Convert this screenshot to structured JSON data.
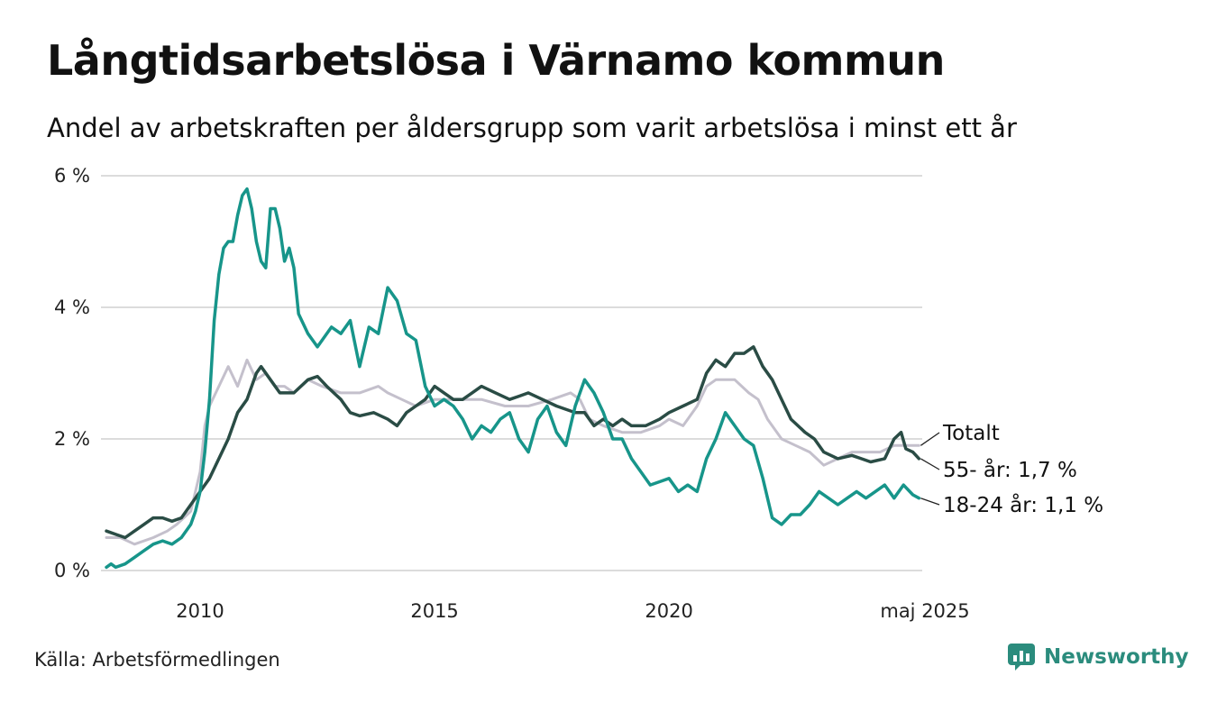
{
  "title": "Långtidsarbetslösa i Värnamo kommun",
  "subtitle": "Andel av arbetskraften per åldersgrupp som varit arbetslösa i minst ett år",
  "source": "Källa: Arbetsförmedlingen",
  "brand": "Newsworthy",
  "colors": {
    "totalt": "#c4c0cc",
    "age55": "#2a4c45",
    "age1824": "#17958a",
    "grid": "#dcdcdc",
    "brand": "#2b8c7d"
  },
  "chart_data": {
    "type": "line",
    "title": "Långtidsarbetslösa i Värnamo kommun",
    "xlabel": "",
    "ylabel": "",
    "xlim": [
      2008.0,
      2025.4
    ],
    "ylim": [
      0,
      6
    ],
    "grid": "horizontal",
    "x_ticks": [
      {
        "value": 2010,
        "label": "2010"
      },
      {
        "value": 2015,
        "label": "2015"
      },
      {
        "value": 2020,
        "label": "2020"
      },
      {
        "value": 2025.33,
        "label": "maj 2025"
      }
    ],
    "y_ticks": [
      {
        "value": 0,
        "label": "0 %"
      },
      {
        "value": 2,
        "label": "2 %"
      },
      {
        "value": 4,
        "label": "4 %"
      },
      {
        "value": 6,
        "label": "6 %"
      }
    ],
    "end_labels": [
      {
        "series": "totalt",
        "label": "Totalt"
      },
      {
        "series": "age55",
        "label": "55- år: 1,7 %"
      },
      {
        "series": "age1824",
        "label": "18-24 år: 1,1 %"
      }
    ],
    "series": [
      {
        "key": "totalt",
        "points": [
          [
            2008.0,
            0.5
          ],
          [
            2008.3,
            0.5
          ],
          [
            2008.6,
            0.4
          ],
          [
            2009.0,
            0.5
          ],
          [
            2009.3,
            0.6
          ],
          [
            2009.5,
            0.7
          ],
          [
            2009.8,
            0.9
          ],
          [
            2010.0,
            1.5
          ],
          [
            2010.1,
            2.2
          ],
          [
            2010.2,
            2.5
          ],
          [
            2010.4,
            2.8
          ],
          [
            2010.6,
            3.1
          ],
          [
            2010.8,
            2.8
          ],
          [
            2011.0,
            3.2
          ],
          [
            2011.2,
            2.9
          ],
          [
            2011.4,
            3.0
          ],
          [
            2011.6,
            2.8
          ],
          [
            2011.8,
            2.8
          ],
          [
            2012.0,
            2.7
          ],
          [
            2012.3,
            2.9
          ],
          [
            2012.6,
            2.8
          ],
          [
            2013.0,
            2.7
          ],
          [
            2013.4,
            2.7
          ],
          [
            2013.8,
            2.8
          ],
          [
            2014.0,
            2.7
          ],
          [
            2014.3,
            2.6
          ],
          [
            2014.6,
            2.5
          ],
          [
            2015.0,
            2.6
          ],
          [
            2015.5,
            2.6
          ],
          [
            2016.0,
            2.6
          ],
          [
            2016.5,
            2.5
          ],
          [
            2017.0,
            2.5
          ],
          [
            2017.5,
            2.6
          ],
          [
            2017.9,
            2.7
          ],
          [
            2018.1,
            2.6
          ],
          [
            2018.3,
            2.3
          ],
          [
            2018.6,
            2.2
          ],
          [
            2019.0,
            2.1
          ],
          [
            2019.4,
            2.1
          ],
          [
            2019.8,
            2.2
          ],
          [
            2020.0,
            2.3
          ],
          [
            2020.3,
            2.2
          ],
          [
            2020.6,
            2.5
          ],
          [
            2020.8,
            2.8
          ],
          [
            2021.0,
            2.9
          ],
          [
            2021.4,
            2.9
          ],
          [
            2021.7,
            2.7
          ],
          [
            2021.9,
            2.6
          ],
          [
            2022.1,
            2.3
          ],
          [
            2022.4,
            2.0
          ],
          [
            2022.7,
            1.9
          ],
          [
            2023.0,
            1.8
          ],
          [
            2023.3,
            1.6
          ],
          [
            2023.6,
            1.7
          ],
          [
            2023.9,
            1.8
          ],
          [
            2024.2,
            1.8
          ],
          [
            2024.5,
            1.8
          ],
          [
            2024.8,
            1.9
          ],
          [
            2025.0,
            1.9
          ],
          [
            2025.33,
            1.9
          ]
        ]
      },
      {
        "key": "age55",
        "points": [
          [
            2008.0,
            0.6
          ],
          [
            2008.2,
            0.55
          ],
          [
            2008.4,
            0.5
          ],
          [
            2008.6,
            0.6
          ],
          [
            2008.8,
            0.7
          ],
          [
            2009.0,
            0.8
          ],
          [
            2009.2,
            0.8
          ],
          [
            2009.4,
            0.75
          ],
          [
            2009.6,
            0.8
          ],
          [
            2009.8,
            1.0
          ],
          [
            2010.0,
            1.2
          ],
          [
            2010.2,
            1.4
          ],
          [
            2010.4,
            1.7
          ],
          [
            2010.6,
            2.0
          ],
          [
            2010.7,
            2.2
          ],
          [
            2010.8,
            2.4
          ],
          [
            2011.0,
            2.6
          ],
          [
            2011.1,
            2.8
          ],
          [
            2011.2,
            3.0
          ],
          [
            2011.3,
            3.1
          ],
          [
            2011.5,
            2.9
          ],
          [
            2011.7,
            2.7
          ],
          [
            2012.0,
            2.7
          ],
          [
            2012.3,
            2.9
          ],
          [
            2012.5,
            2.95
          ],
          [
            2012.7,
            2.8
          ],
          [
            2013.0,
            2.6
          ],
          [
            2013.2,
            2.4
          ],
          [
            2013.4,
            2.35
          ],
          [
            2013.7,
            2.4
          ],
          [
            2014.0,
            2.3
          ],
          [
            2014.2,
            2.2
          ],
          [
            2014.4,
            2.4
          ],
          [
            2014.6,
            2.5
          ],
          [
            2014.8,
            2.6
          ],
          [
            2015.0,
            2.8
          ],
          [
            2015.2,
            2.7
          ],
          [
            2015.4,
            2.6
          ],
          [
            2015.6,
            2.6
          ],
          [
            2015.8,
            2.7
          ],
          [
            2016.0,
            2.8
          ],
          [
            2016.3,
            2.7
          ],
          [
            2016.6,
            2.6
          ],
          [
            2016.8,
            2.65
          ],
          [
            2017.0,
            2.7
          ],
          [
            2017.3,
            2.6
          ],
          [
            2017.6,
            2.5
          ],
          [
            2018.0,
            2.4
          ],
          [
            2018.2,
            2.4
          ],
          [
            2018.4,
            2.2
          ],
          [
            2018.6,
            2.3
          ],
          [
            2018.8,
            2.2
          ],
          [
            2019.0,
            2.3
          ],
          [
            2019.2,
            2.2
          ],
          [
            2019.5,
            2.2
          ],
          [
            2019.8,
            2.3
          ],
          [
            2020.0,
            2.4
          ],
          [
            2020.3,
            2.5
          ],
          [
            2020.6,
            2.6
          ],
          [
            2020.8,
            3.0
          ],
          [
            2021.0,
            3.2
          ],
          [
            2021.2,
            3.1
          ],
          [
            2021.4,
            3.3
          ],
          [
            2021.6,
            3.3
          ],
          [
            2021.8,
            3.4
          ],
          [
            2022.0,
            3.1
          ],
          [
            2022.2,
            2.9
          ],
          [
            2022.4,
            2.6
          ],
          [
            2022.6,
            2.3
          ],
          [
            2022.9,
            2.1
          ],
          [
            2023.1,
            2.0
          ],
          [
            2023.3,
            1.8
          ],
          [
            2023.6,
            1.7
          ],
          [
            2023.9,
            1.75
          ],
          [
            2024.1,
            1.7
          ],
          [
            2024.3,
            1.65
          ],
          [
            2024.6,
            1.7
          ],
          [
            2024.8,
            2.0
          ],
          [
            2024.95,
            2.1
          ],
          [
            2025.05,
            1.85
          ],
          [
            2025.2,
            1.8
          ],
          [
            2025.33,
            1.7
          ]
        ]
      },
      {
        "key": "age1824",
        "points": [
          [
            2008.0,
            0.05
          ],
          [
            2008.1,
            0.1
          ],
          [
            2008.2,
            0.05
          ],
          [
            2008.4,
            0.1
          ],
          [
            2008.6,
            0.2
          ],
          [
            2008.8,
            0.3
          ],
          [
            2009.0,
            0.4
          ],
          [
            2009.2,
            0.45
          ],
          [
            2009.4,
            0.4
          ],
          [
            2009.6,
            0.5
          ],
          [
            2009.8,
            0.7
          ],
          [
            2009.9,
            0.9
          ],
          [
            2010.0,
            1.2
          ],
          [
            2010.1,
            1.8
          ],
          [
            2010.2,
            2.6
          ],
          [
            2010.3,
            3.8
          ],
          [
            2010.4,
            4.5
          ],
          [
            2010.5,
            4.9
          ],
          [
            2010.6,
            5.0
          ],
          [
            2010.7,
            5.0
          ],
          [
            2010.8,
            5.4
          ],
          [
            2010.9,
            5.7
          ],
          [
            2011.0,
            5.8
          ],
          [
            2011.1,
            5.5
          ],
          [
            2011.2,
            5.0
          ],
          [
            2011.3,
            4.7
          ],
          [
            2011.4,
            4.6
          ],
          [
            2011.5,
            5.5
          ],
          [
            2011.6,
            5.5
          ],
          [
            2011.7,
            5.2
          ],
          [
            2011.8,
            4.7
          ],
          [
            2011.9,
            4.9
          ],
          [
            2012.0,
            4.6
          ],
          [
            2012.1,
            3.9
          ],
          [
            2012.3,
            3.6
          ],
          [
            2012.5,
            3.4
          ],
          [
            2012.6,
            3.5
          ],
          [
            2012.8,
            3.7
          ],
          [
            2013.0,
            3.6
          ],
          [
            2013.2,
            3.8
          ],
          [
            2013.4,
            3.1
          ],
          [
            2013.6,
            3.7
          ],
          [
            2013.8,
            3.6
          ],
          [
            2014.0,
            4.3
          ],
          [
            2014.2,
            4.1
          ],
          [
            2014.4,
            3.6
          ],
          [
            2014.6,
            3.5
          ],
          [
            2014.8,
            2.8
          ],
          [
            2015.0,
            2.5
          ],
          [
            2015.2,
            2.6
          ],
          [
            2015.4,
            2.5
          ],
          [
            2015.6,
            2.3
          ],
          [
            2015.8,
            2.0
          ],
          [
            2016.0,
            2.2
          ],
          [
            2016.2,
            2.1
          ],
          [
            2016.4,
            2.3
          ],
          [
            2016.6,
            2.4
          ],
          [
            2016.8,
            2.0
          ],
          [
            2017.0,
            1.8
          ],
          [
            2017.2,
            2.3
          ],
          [
            2017.4,
            2.5
          ],
          [
            2017.6,
            2.1
          ],
          [
            2017.8,
            1.9
          ],
          [
            2018.0,
            2.5
          ],
          [
            2018.2,
            2.9
          ],
          [
            2018.4,
            2.7
          ],
          [
            2018.6,
            2.4
          ],
          [
            2018.8,
            2.0
          ],
          [
            2019.0,
            2.0
          ],
          [
            2019.2,
            1.7
          ],
          [
            2019.4,
            1.5
          ],
          [
            2019.6,
            1.3
          ],
          [
            2019.8,
            1.35
          ],
          [
            2020.0,
            1.4
          ],
          [
            2020.2,
            1.2
          ],
          [
            2020.4,
            1.3
          ],
          [
            2020.6,
            1.2
          ],
          [
            2020.8,
            1.7
          ],
          [
            2021.0,
            2.0
          ],
          [
            2021.2,
            2.4
          ],
          [
            2021.4,
            2.2
          ],
          [
            2021.6,
            2.0
          ],
          [
            2021.8,
            1.9
          ],
          [
            2022.0,
            1.4
          ],
          [
            2022.2,
            0.8
          ],
          [
            2022.4,
            0.7
          ],
          [
            2022.6,
            0.85
          ],
          [
            2022.8,
            0.85
          ],
          [
            2023.0,
            1.0
          ],
          [
            2023.2,
            1.2
          ],
          [
            2023.4,
            1.1
          ],
          [
            2023.6,
            1.0
          ],
          [
            2023.8,
            1.1
          ],
          [
            2024.0,
            1.2
          ],
          [
            2024.2,
            1.1
          ],
          [
            2024.4,
            1.2
          ],
          [
            2024.6,
            1.3
          ],
          [
            2024.8,
            1.1
          ],
          [
            2025.0,
            1.3
          ],
          [
            2025.2,
            1.15
          ],
          [
            2025.33,
            1.1
          ]
        ]
      }
    ]
  }
}
